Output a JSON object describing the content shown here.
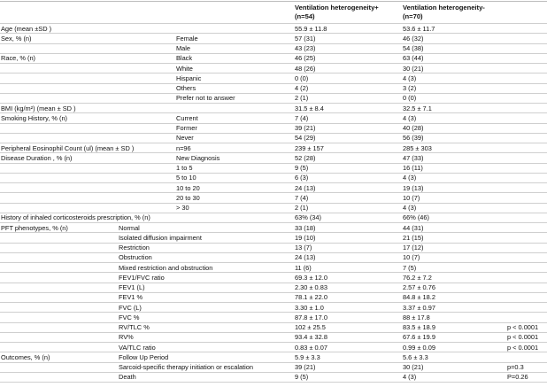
{
  "header": {
    "col1_line1": "Ventilation heterogeneity+",
    "col1_line2": "(n=54)",
    "col2_line1": "Ventilation heterogeneity-",
    "col2_line2": "(n=70)"
  },
  "rows": [
    {
      "a": "Age (mean ±SD )",
      "b": "",
      "c": "",
      "v1": "55.9 ± 11.8",
      "v2": "53.6 ± 11.7",
      "p": ""
    },
    {
      "a": "Sex, % (n)",
      "b": "Female",
      "c": "",
      "v1": "57 (31)",
      "v2": "46 (32)",
      "p": ""
    },
    {
      "a": "",
      "b": "Male",
      "c": "",
      "v1": "43 (23)",
      "v2": "54 (38)",
      "p": ""
    },
    {
      "a": "Race, % (n)",
      "b": "Black",
      "c": "",
      "v1": "46 (25)",
      "v2": "63 (44)",
      "p": ""
    },
    {
      "a": "",
      "b": "White",
      "c": "",
      "v1": "48 (26)",
      "v2": "30 (21)",
      "p": ""
    },
    {
      "a": "",
      "b": "Hispanic",
      "c": "",
      "v1": "0 (0)",
      "v2": "4 (3)",
      "p": ""
    },
    {
      "a": "",
      "b": "Others",
      "c": "",
      "v1": "4 (2)",
      "v2": "3 (2)",
      "p": ""
    },
    {
      "a": "",
      "b": "Prefer not to answer",
      "c": "",
      "v1": "2 (1)",
      "v2": "0 (0)",
      "p": ""
    },
    {
      "a": "BMI (kg/m²)  (mean ± SD )",
      "b": "",
      "c": "",
      "v1": "31.5 ± 8.4",
      "v2": "32.5 ± 7.1",
      "p": ""
    },
    {
      "a": "Smoking History, % (n)",
      "b": "Current",
      "c": "",
      "v1": "7 (4)",
      "v2": "4 (3)",
      "p": ""
    },
    {
      "a": "",
      "b": "Former",
      "c": "",
      "v1": "39 (21)",
      "v2": "40 (28)",
      "p": ""
    },
    {
      "a": "",
      "b": "Never",
      "c": "",
      "v1": "54 (29)",
      "v2": "56 (39)",
      "p": ""
    },
    {
      "a": "Peripheral Eosinophil Count (ul) (mean ± SD )",
      "b": "n=96",
      "c": "",
      "v1": "239 ± 157",
      "v2": "285 ± 303",
      "p": ""
    },
    {
      "a": "Disease Duration , % (n)",
      "b": "New Diagnosis",
      "c": "",
      "v1": "52 (28)",
      "v2": "47 (33)",
      "p": ""
    },
    {
      "a": "",
      "b": "1 to 5",
      "c": "",
      "v1": "9 (5)",
      "v2": "16 (11)",
      "p": ""
    },
    {
      "a": "",
      "b": "5 to 10",
      "c": "",
      "v1": "6 (3)",
      "v2": "4 (3)",
      "p": ""
    },
    {
      "a": "",
      "b": "10 to 20",
      "c": "",
      "v1": "24 (13)",
      "v2": "19 (13)",
      "p": ""
    },
    {
      "a": "",
      "b": "20 to 30",
      "c": "",
      "v1": "7 (4)",
      "v2": "10 (7)",
      "p": ""
    },
    {
      "a": "",
      "b": "> 30",
      "c": "",
      "v1": "2 (1)",
      "v2": "4 (3)",
      "p": ""
    },
    {
      "a": "History of inhaled corticosteroids prescription, % (n)",
      "b": "",
      "c": "",
      "v1": "63% (34)",
      "v2": "66% (46)",
      "p": ""
    },
    {
      "a": "PFT phenotypes, % (n)",
      "b": "",
      "c": "Normal",
      "v1": "33 (18)",
      "v2": "44 (31)",
      "p": ""
    },
    {
      "a": "",
      "b": "",
      "c": "Isolated diffusion impairment",
      "v1": "19 (10)",
      "v2": "21 (15)",
      "p": ""
    },
    {
      "a": "",
      "b": "",
      "c": "Restriction",
      "v1": "13 (7)",
      "v2": "17 (12)",
      "p": ""
    },
    {
      "a": "",
      "b": "",
      "c": "Obstruction",
      "v1": "24 (13)",
      "v2": "10 (7)",
      "p": ""
    },
    {
      "a": "",
      "b": "",
      "c": "Mixed restriction and obstruction",
      "v1": "11 (6)",
      "v2": "7 (5)",
      "p": ""
    },
    {
      "a": "",
      "b": "",
      "c": "FEV1/FVC ratio",
      "v1": "69.3 ± 12.0",
      "v2": "76.2 ± 7.2",
      "p": ""
    },
    {
      "a": "",
      "b": "",
      "c": "FEV1 (L)",
      "v1": "2.30 ± 0.83",
      "v2": "2.57 ± 0.76",
      "p": ""
    },
    {
      "a": "",
      "b": "",
      "c": "FEV1 %",
      "v1": "78.1 ± 22.0",
      "v2": "84.8 ± 18.2",
      "p": ""
    },
    {
      "a": "",
      "b": "",
      "c": "FVC (L)",
      "v1": "3.30 ± 1.0",
      "v2": "3.37 ± 0.97",
      "p": ""
    },
    {
      "a": "",
      "b": "",
      "c": "FVC %",
      "v1": "87.8 ± 17.0",
      "v2": "88 ± 17.8",
      "p": ""
    },
    {
      "a": "",
      "b": "",
      "c": "RV/TLC %",
      "v1": "102 ± 25.5",
      "v2": "83.5 ± 18.9",
      "p": "p < 0.0001"
    },
    {
      "a": "",
      "b": "",
      "c": "RV%",
      "v1": "93.4 ± 32.8",
      "v2": "67.6 ± 19.9",
      "p": "p < 0.0001"
    },
    {
      "a": "",
      "b": "",
      "c": "VA/TLC ratio",
      "v1": "0.83 ± 0.07",
      "v2": "0.99 ± 0.09",
      "p": "p < 0.0001"
    },
    {
      "a": "Outcomes, % (n)",
      "b": "",
      "c": "Follow Up Period",
      "v1": "5.9 ± 3.3",
      "v2": "5.6 ± 3.3",
      "p": ""
    },
    {
      "a": "",
      "b": "",
      "c": "Sarcoid-specific therapy initiation or escalation",
      "v1": "39 (21)",
      "v2": "30 (21)",
      "p": "p=0.3"
    },
    {
      "a": "",
      "b": "",
      "c": "Death",
      "v1": "9 (5)",
      "v2": "4 (3)",
      "p": "P=0.26"
    }
  ]
}
